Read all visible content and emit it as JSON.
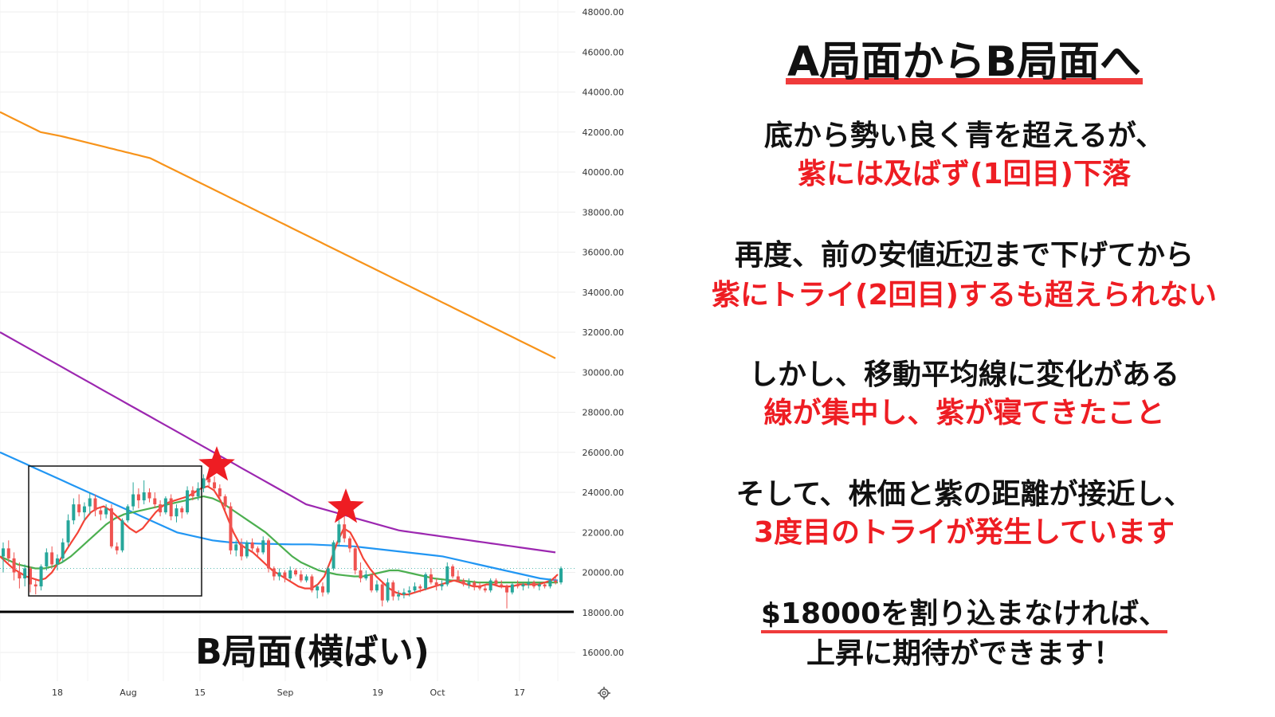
{
  "chart_data": {
    "type": "candlestick",
    "x_ticks": [
      "18",
      "Aug",
      "15",
      "Sep",
      "19",
      "Oct",
      "17"
    ],
    "y_ticks": [
      "48000.00",
      "46000.00",
      "44000.00",
      "42000.00",
      "40000.00",
      "38000.00",
      "36000.00",
      "34000.00",
      "32000.00",
      "30000.00",
      "28000.00",
      "26000.00",
      "24000.00",
      "22000.00",
      "20000.00",
      "18000.00",
      "16000.00"
    ],
    "ylim": [
      15000,
      48700
    ],
    "grid": true,
    "candles": [
      [
        20800,
        21500,
        20000,
        21200
      ],
      [
        21200,
        21600,
        20500,
        20700
      ],
      [
        20700,
        21000,
        19600,
        20000
      ],
      [
        20000,
        20500,
        19200,
        19700
      ],
      [
        19700,
        20400,
        19300,
        20200
      ],
      [
        20200,
        20300,
        19000,
        19400
      ],
      [
        19400,
        19700,
        18900,
        19300
      ],
      [
        19300,
        20400,
        19100,
        20300
      ],
      [
        20300,
        21200,
        20100,
        21000
      ],
      [
        21000,
        21300,
        20200,
        20400
      ],
      [
        20400,
        20900,
        20100,
        20700
      ],
      [
        20700,
        21700,
        20500,
        21500
      ],
      [
        21500,
        22900,
        21300,
        22600
      ],
      [
        22600,
        23700,
        22400,
        23400
      ],
      [
        23400,
        23900,
        22800,
        23000
      ],
      [
        23000,
        23500,
        22600,
        23300
      ],
      [
        23300,
        24000,
        22900,
        23700
      ],
      [
        23700,
        23900,
        22800,
        23100
      ],
      [
        23100,
        23300,
        22600,
        22900
      ],
      [
        22900,
        23400,
        22700,
        23200
      ],
      [
        23200,
        23400,
        21200,
        21300
      ],
      [
        21300,
        21500,
        20900,
        21100
      ],
      [
        21100,
        22700,
        21000,
        22600
      ],
      [
        22600,
        23400,
        22500,
        23300
      ],
      [
        23300,
        24500,
        23100,
        23900
      ],
      [
        23900,
        24200,
        23200,
        23600
      ],
      [
        23600,
        24600,
        23400,
        24000
      ],
      [
        24000,
        24200,
        23500,
        23700
      ],
      [
        23700,
        24000,
        23200,
        23400
      ],
      [
        23400,
        23600,
        22800,
        23000
      ],
      [
        23000,
        23800,
        22900,
        23700
      ],
      [
        23700,
        23900,
        22600,
        22800
      ],
      [
        22800,
        23400,
        22500,
        23200
      ],
      [
        23200,
        23300,
        22700,
        23000
      ],
      [
        23000,
        24300,
        22900,
        24100
      ],
      [
        24100,
        24300,
        23600,
        23800
      ],
      [
        23800,
        24500,
        23600,
        24200
      ],
      [
        24200,
        24900,
        24000,
        24700
      ],
      [
        24700,
        25200,
        24300,
        24500
      ],
      [
        24500,
        24800,
        24000,
        24200
      ],
      [
        24200,
        24400,
        23600,
        23800
      ],
      [
        23800,
        23900,
        23100,
        23300
      ],
      [
        23300,
        23500,
        20900,
        21100
      ],
      [
        21100,
        21600,
        20800,
        21400
      ],
      [
        21400,
        21700,
        20600,
        20800
      ],
      [
        20800,
        21600,
        20700,
        21500
      ],
      [
        21500,
        21700,
        21000,
        21200
      ],
      [
        21200,
        21300,
        20800,
        21000
      ],
      [
        21000,
        21800,
        20900,
        21600
      ],
      [
        21600,
        21700,
        20000,
        20200
      ],
      [
        20200,
        20300,
        19600,
        19800
      ],
      [
        19800,
        20200,
        19600,
        20000
      ],
      [
        20000,
        20100,
        19500,
        19700
      ],
      [
        19700,
        20300,
        19600,
        20100
      ],
      [
        20100,
        20200,
        19800,
        19900
      ],
      [
        19900,
        20100,
        19500,
        19600
      ],
      [
        19600,
        19900,
        19500,
        19800
      ],
      [
        19800,
        19900,
        19000,
        19100
      ],
      [
        19100,
        19400,
        18700,
        19300
      ],
      [
        19300,
        19500,
        18800,
        19000
      ],
      [
        19000,
        20300,
        18900,
        20200
      ],
      [
        20200,
        21600,
        20100,
        21500
      ],
      [
        21500,
        22600,
        21300,
        22400
      ],
      [
        22400,
        22900,
        21500,
        21700
      ],
      [
        21700,
        21800,
        21000,
        21200
      ],
      [
        21200,
        21300,
        19900,
        20100
      ],
      [
        20100,
        20500,
        19500,
        19700
      ],
      [
        19700,
        20100,
        19600,
        19900
      ],
      [
        19900,
        19900,
        19000,
        19100
      ],
      [
        19100,
        19600,
        19000,
        19400
      ],
      [
        19400,
        19500,
        18300,
        18600
      ],
      [
        18600,
        19700,
        18500,
        19500
      ],
      [
        19500,
        19600,
        18600,
        18800
      ],
      [
        18800,
        19100,
        18600,
        18900
      ],
      [
        18900,
        19200,
        18700,
        19000
      ],
      [
        19000,
        19300,
        18800,
        19100
      ],
      [
        19100,
        19500,
        19000,
        19300
      ],
      [
        19300,
        19400,
        19000,
        19200
      ],
      [
        19200,
        20000,
        19100,
        19900
      ],
      [
        19900,
        20200,
        19400,
        19500
      ],
      [
        19500,
        19700,
        19100,
        19300
      ],
      [
        19300,
        19600,
        19100,
        19400
      ],
      [
        19400,
        20500,
        19300,
        20300
      ],
      [
        20300,
        20400,
        19700,
        19800
      ],
      [
        19800,
        20100,
        19500,
        19600
      ],
      [
        19600,
        19700,
        19300,
        19400
      ],
      [
        19400,
        19700,
        19200,
        19500
      ],
      [
        19500,
        19600,
        19100,
        19300
      ],
      [
        19300,
        19500,
        19100,
        19200
      ],
      [
        19200,
        19400,
        19000,
        19100
      ],
      [
        19100,
        19700,
        19000,
        19600
      ],
      [
        19600,
        19700,
        19300,
        19400
      ],
      [
        19400,
        19600,
        19200,
        19300
      ],
      [
        19300,
        19400,
        18200,
        19000
      ],
      [
        19000,
        19500,
        18900,
        19400
      ],
      [
        19400,
        19600,
        19200,
        19300
      ],
      [
        19300,
        19500,
        19100,
        19400
      ],
      [
        19400,
        19700,
        19200,
        19500
      ],
      [
        19500,
        19600,
        19200,
        19300
      ],
      [
        19300,
        19500,
        19100,
        19400
      ],
      [
        19400,
        19500,
        19200,
        19300
      ],
      [
        19300,
        19700,
        19200,
        19600
      ],
      [
        19600,
        19800,
        19400,
        19500
      ],
      [
        19500,
        20300,
        19400,
        20200
      ]
    ],
    "series": [
      {
        "color": "#f7931a",
        "values": [
          43000,
          42900,
          42800,
          42700,
          42600,
          42500,
          42400,
          42300,
          42200,
          42100,
          42000,
          41960,
          41920,
          41880,
          41840,
          41800,
          41750,
          41700,
          41650,
          41600,
          41550,
          41500,
          41450,
          41400,
          41350,
          41300,
          41250,
          41200,
          41150,
          41100,
          41050,
          41000,
          40950,
          40900,
          40850,
          40800,
          40750,
          40700,
          40600,
          40500,
          40400,
          40300,
          40200,
          40100,
          40000,
          39900,
          39800,
          39700,
          39600,
          39500,
          39400,
          39300,
          39200,
          39100,
          39000,
          38900,
          38800,
          38700,
          38600,
          38500,
          38400,
          38300,
          38200,
          38100,
          38000,
          37900,
          37800,
          37700,
          37600,
          37500,
          37400,
          37300,
          37200,
          37100,
          37000,
          36900,
          36800,
          36700,
          36600,
          36500,
          36400,
          36300,
          36200,
          36100,
          36000,
          35900,
          35800,
          35700,
          35600,
          35500,
          35400,
          35300,
          35200,
          35100,
          35000,
          34900,
          34800,
          34700,
          34600,
          34500,
          34400,
          34300,
          34200,
          34100,
          34000,
          33900,
          33800,
          33700,
          33600,
          33500,
          33400,
          33300,
          33200,
          33100,
          33000,
          32900,
          32800,
          32700,
          32600,
          32500,
          32400,
          32300,
          32200,
          32100,
          32000,
          31900,
          31800,
          31700,
          31600,
          31500,
          31400,
          31300,
          31200,
          31100,
          31000,
          30900,
          30800,
          30700
        ]
      },
      {
        "color": "#9c27b0",
        "values": [
          32000,
          31800,
          31600,
          31400,
          31200,
          31000,
          30800,
          30600,
          30400,
          30200,
          30000,
          29800,
          29600,
          29400,
          29200,
          29000,
          28800,
          28600,
          28400,
          28200,
          28000,
          27800,
          27600,
          27400,
          27200,
          27000,
          26800,
          26600,
          26400,
          26200,
          26000,
          25800,
          25600,
          25400,
          25200,
          25000,
          24800,
          24600,
          24400,
          24200,
          24000,
          23800,
          23600,
          23400,
          23300,
          23200,
          23100,
          23000,
          22900,
          22800,
          22700,
          22600,
          22500,
          22400,
          22300,
          22200,
          22100,
          22050,
          22000,
          21950,
          21900,
          21850,
          21800,
          21750,
          21700,
          21650,
          21600,
          21550,
          21500,
          21450,
          21400,
          21350,
          21300,
          21250,
          21200,
          21150,
          21100,
          21050,
          21000
        ]
      },
      {
        "color": "#2196f3",
        "values": [
          26000,
          25800,
          25600,
          25400,
          25200,
          25000,
          24800,
          24600,
          24400,
          24200,
          24000,
          23800,
          23600,
          23400,
          23200,
          23000,
          22800,
          22600,
          22400,
          22200,
          22000,
          21900,
          21800,
          21700,
          21600,
          21550,
          21500,
          21480,
          21460,
          21440,
          21430,
          21420,
          21410,
          21400,
          21400,
          21400,
          21380,
          21360,
          21340,
          21320,
          21300,
          21250,
          21200,
          21150,
          21100,
          21050,
          21000,
          20950,
          20900,
          20850,
          20800,
          20700,
          20600,
          20500,
          20400,
          20300,
          20200,
          20100,
          20000,
          19900,
          19800,
          19700,
          19650,
          19600
        ]
      },
      {
        "color": "#4caf50",
        "values": [
          20800,
          20600,
          20400,
          20300,
          20200,
          20200,
          20300,
          20500,
          20800,
          21200,
          21600,
          22000,
          22400,
          22700,
          22900,
          23000,
          23100,
          23200,
          23300,
          23400,
          23500,
          23600,
          23700,
          23800,
          23700,
          23500,
          23200,
          22900,
          22600,
          22300,
          22000,
          21600,
          21200,
          20800,
          20500,
          20300,
          20100,
          20000,
          19900,
          19850,
          19800,
          19800,
          19900,
          20000,
          20100,
          20100,
          20000,
          19900,
          19800,
          19700,
          19650,
          19600,
          19600,
          19550,
          19500,
          19500,
          19500,
          19500,
          19500,
          19500,
          19500,
          19500,
          19500,
          19500
        ]
      },
      {
        "color": "#f44336",
        "values": [
          20800,
          20500,
          20200,
          20000,
          19800,
          19700,
          19600,
          19700,
          20000,
          20500,
          21000,
          21500,
          22000,
          22600,
          23000,
          23200,
          23300,
          23100,
          22800,
          22500,
          22200,
          22000,
          22200,
          22600,
          23000,
          23300,
          23500,
          23600,
          23700,
          23800,
          24000,
          24200,
          24300,
          24100,
          23600,
          22800,
          22000,
          21400,
          21200,
          21000,
          20700,
          20400,
          20100,
          19900,
          19700,
          19500,
          19300,
          19200,
          19200,
          19400,
          19800,
          20600,
          21500,
          22200,
          22000,
          21400,
          20700,
          20200,
          19800,
          19500,
          19200,
          19000,
          18900,
          18900,
          19000,
          19100,
          19200,
          19300,
          19400,
          19500,
          19600,
          19500,
          19400,
          19300,
          19300,
          19400,
          19400,
          19300,
          19300,
          19300,
          19400,
          19400,
          19400,
          19400,
          19500,
          19600,
          19900
        ]
      }
    ],
    "support_level": 18000,
    "box_label": "B局面(横ばい)"
  },
  "title": "A局面からB局面へ",
  "blocks": [
    {
      "black": "底から勢い良く青を超えるが、",
      "red": "紫には及ばず(1回目)下落"
    },
    {
      "black": "再度、前の安値近辺まで下げてから",
      "red": "紫にトライ(2回目)するも超えられない"
    },
    {
      "black": "しかし、移動平均線に変化がある",
      "red": "線が集中し、紫が寝てきたこと"
    },
    {
      "black": "そして、株価と紫の距離が接近し、",
      "red": "3度目のトライが発生しています"
    }
  ],
  "conclusion": {
    "line1": "$18000を割り込まなければ、",
    "line2": "上昇に期待ができます！"
  },
  "settings_icon": "gear-icon"
}
